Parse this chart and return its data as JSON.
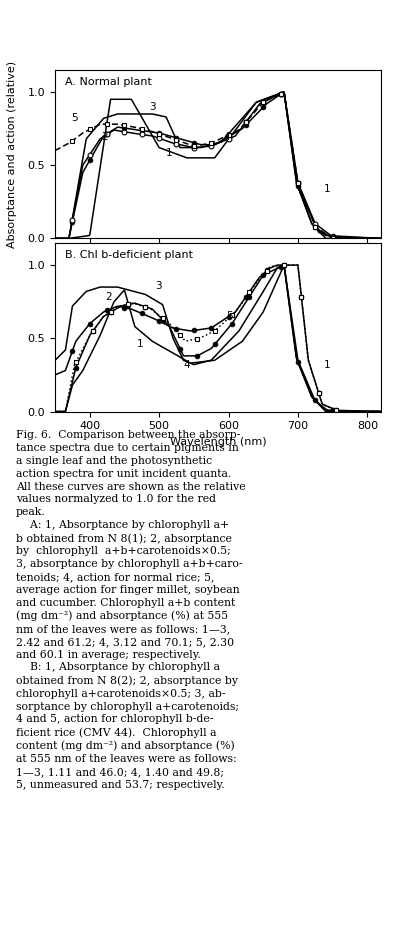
{
  "title_A": "A. Normal plant",
  "title_B": "B. Chl b-deficient plant",
  "xlabel": "Wavelength (nm)",
  "ylabel": "Absorptance and action (relative)",
  "xlim": [
    350,
    820
  ],
  "ylim": [
    0,
    1.15
  ],
  "yticks": [
    0,
    0.5,
    1.0
  ],
  "xticks": [
    400,
    500,
    600,
    700,
    800
  ],
  "caption": "Fig. 6.  Comparison between the absorp-\ntance spectra due to certain pigments in\na single leaf and the photosynthetic\naction spectra for unit incident quanta.\nAll these curves are shown as the relative\nvalues normalyzed to 1.0 for the red\npeak.\n    A: 1, Absorptance by chlorophyll a+\nb obtained from N 8(1); 2, absorptance\nby  chlorophyll  a+b+carotenoids×0.5;\n3, absorptance by chlorophyll a+b+caro-\ntenoids; 4, action for normal rice; 5,\naverage action for finger millet, soybean\nand cucumber. Chlorophyll a+b content\n(mg dm⁻²) and absorptance (%) at 555\nnm of the leaves were as follows: 1—3,\n2.42 and 61.2; 4, 3.12 and 70.1; 5, 2.30\nand 60.1 in average; respectively.\n    B: 1, Absorptance by chlorophyll a\nobtained from N 8(2); 2, absorptance by\nchlorophyll a+carotenoids×0.5; 3, ab-\nsorptance by chlorophyll a+carotenoids;\n4 and 5, action for chlorophyll b-de-\nficient rice (CMV 44).  Chlorophyll a\ncontent (mg dm⁻²) and absorptance (%)\nat 555 nm of the leaves were as follows:\n1—3, 1.11 and 46.0; 4, 1.40 and 49.8;\n5, unmeasured and 53.7; respectively."
}
